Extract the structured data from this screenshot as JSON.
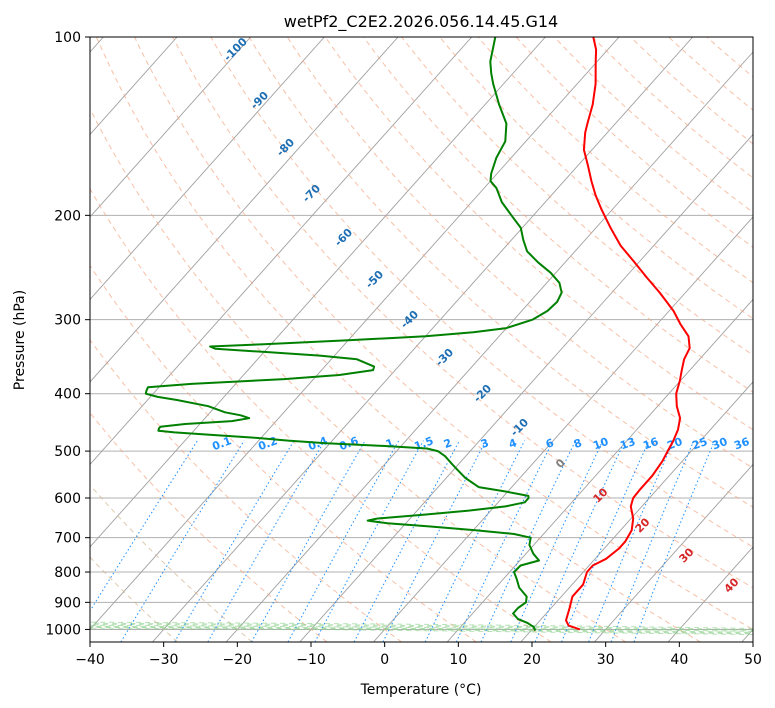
{
  "chart_data": {
    "type": "line",
    "title": "wetPf2_C2E2.2026.056.14.45.G14",
    "xlabel": "Temperature (°C)",
    "ylabel": "Pressure (hPa)",
    "xlim": [
      -40,
      50
    ],
    "ylim": [
      1050,
      100
    ],
    "y_scale": "log",
    "grid": true,
    "x_ticks": [
      -40,
      -30,
      -20,
      -10,
      0,
      10,
      20,
      30,
      40,
      50
    ],
    "y_ticks": [
      100,
      200,
      300,
      400,
      500,
      600,
      700,
      800,
      900,
      1000
    ],
    "skew_isotherms": [
      -140,
      -130,
      -120,
      -110,
      -100,
      -90,
      -80,
      -70,
      -60,
      -50,
      -40,
      -30,
      -20,
      -10,
      0,
      10,
      20,
      30,
      40,
      50
    ],
    "isotherm_labels": [
      -100,
      -90,
      -80,
      -70,
      -60,
      -50,
      -40,
      -30,
      -20,
      -10
    ],
    "freezing_label": "0",
    "dry_adiabat_temps": [
      -30,
      -20,
      -10,
      0,
      10,
      20,
      30,
      40,
      50,
      60,
      70,
      80,
      90,
      100,
      110,
      120,
      130,
      140,
      150,
      160,
      170,
      180,
      190,
      200
    ],
    "moist_adiabat_temps": [
      -10,
      0,
      10,
      20,
      30,
      40,
      50,
      60
    ],
    "moist_adiabat_labels": [
      "10",
      "20",
      "30",
      "40"
    ],
    "mixing_ratios": [
      0.1,
      0.2,
      0.4,
      0.6,
      1,
      1.5,
      2,
      3,
      4,
      6,
      8,
      10,
      13,
      16,
      20,
      25,
      30,
      36
    ],
    "mixing_ratio_labels": [
      "0.1",
      "0.2",
      "0.4",
      "0.6",
      "1",
      "1.5",
      "2",
      "3",
      "4",
      "6",
      "8",
      "10",
      "13",
      "16",
      "20",
      "25",
      "30",
      "36"
    ],
    "series": [
      {
        "color": "#ff0000",
        "points": [
          [
            1000,
            26.5
          ],
          [
            985,
            24.5
          ],
          [
            965,
            23.5
          ],
          [
            920,
            22.5
          ],
          [
            880,
            21.5
          ],
          [
            840,
            21.5
          ],
          [
            800,
            20.5
          ],
          [
            780,
            20.5
          ],
          [
            760,
            21.5
          ],
          [
            730,
            22.0
          ],
          [
            710,
            22.0
          ],
          [
            680,
            21.5
          ],
          [
            650,
            20.3
          ],
          [
            620,
            18.5
          ],
          [
            600,
            17.8
          ],
          [
            580,
            17.7
          ],
          [
            550,
            17.7
          ],
          [
            520,
            17.3
          ],
          [
            500,
            16.8
          ],
          [
            480,
            16.3
          ],
          [
            460,
            15.6
          ],
          [
            440,
            14.5
          ],
          [
            420,
            12.6
          ],
          [
            400,
            11.0
          ],
          [
            380,
            9.9
          ],
          [
            365,
            8.9
          ],
          [
            350,
            7.9
          ],
          [
            335,
            7.3
          ],
          [
            320,
            5.7
          ],
          [
            305,
            3.1
          ],
          [
            290,
            0.6
          ],
          [
            270,
            -3.5
          ],
          [
            255,
            -7.0
          ],
          [
            240,
            -10.6
          ],
          [
            225,
            -14.5
          ],
          [
            210,
            -18.0
          ],
          [
            195,
            -21.6
          ],
          [
            185,
            -24.0
          ],
          [
            175,
            -26.3
          ],
          [
            165,
            -28.6
          ],
          [
            155,
            -31.1
          ],
          [
            145,
            -33.0
          ],
          [
            140,
            -33.8
          ],
          [
            130,
            -35.4
          ],
          [
            120,
            -37.5
          ],
          [
            110,
            -40.2
          ],
          [
            105,
            -41.6
          ],
          [
            100,
            -43.5
          ]
        ]
      },
      {
        "color": "#008000",
        "points": [
          [
            1005,
            20.6
          ],
          [
            990,
            19.9
          ],
          [
            975,
            18.6
          ],
          [
            960,
            16.8
          ],
          [
            940,
            15.5
          ],
          [
            920,
            15.5
          ],
          [
            900,
            15.9
          ],
          [
            880,
            15.3
          ],
          [
            850,
            13.2
          ],
          [
            820,
            11.7
          ],
          [
            800,
            10.6
          ],
          [
            780,
            10.7
          ],
          [
            765,
            12.6
          ],
          [
            745,
            11.0
          ],
          [
            720,
            9.4
          ],
          [
            700,
            8.7
          ],
          [
            690,
            6.0
          ],
          [
            680,
            0.3
          ],
          [
            670,
            -6.5
          ],
          [
            662,
            -12.5
          ],
          [
            655,
            -15.5
          ],
          [
            650,
            -14.5
          ],
          [
            640,
            -8.5
          ],
          [
            630,
            -3.0
          ],
          [
            620,
            1.5
          ],
          [
            610,
            3.6
          ],
          [
            600,
            3.6
          ],
          [
            595,
            3.3
          ],
          [
            585,
            -0.3
          ],
          [
            575,
            -4.5
          ],
          [
            555,
            -7.4
          ],
          [
            540,
            -9.2
          ],
          [
            525,
            -11.0
          ],
          [
            510,
            -12.8
          ],
          [
            500,
            -14.4
          ],
          [
            495,
            -16.2
          ],
          [
            490,
            -22.5
          ],
          [
            485,
            -30.5
          ],
          [
            480,
            -36.0
          ],
          [
            475,
            -40.6
          ],
          [
            470,
            -46.3
          ],
          [
            465,
            -52.4
          ],
          [
            462,
            -54.8
          ],
          [
            458,
            -55.0
          ],
          [
            455,
            -55.0
          ],
          [
            450,
            -52.0
          ],
          [
            445,
            -46.0
          ],
          [
            440,
            -44.0
          ],
          [
            435,
            -45.5
          ],
          [
            430,
            -48.0
          ],
          [
            420,
            -51.0
          ],
          [
            410,
            -56.0
          ],
          [
            405,
            -59.0
          ],
          [
            400,
            -61.0
          ],
          [
            395,
            -61.3
          ],
          [
            390,
            -61.5
          ],
          [
            385,
            -56.0
          ],
          [
            378,
            -44.0
          ],
          [
            372,
            -37.0
          ],
          [
            365,
            -33.0
          ],
          [
            360,
            -33.3
          ],
          [
            350,
            -36.5
          ],
          [
            345,
            -42.0
          ],
          [
            340,
            -50.0
          ],
          [
            336,
            -57.0
          ],
          [
            333,
            -58.0
          ],
          [
            330,
            -51.0
          ],
          [
            325,
            -40.0
          ],
          [
            320,
            -30.0
          ],
          [
            315,
            -24.0
          ],
          [
            310,
            -20.0
          ],
          [
            300,
            -17.5
          ],
          [
            290,
            -16.5
          ],
          [
            280,
            -16.3
          ],
          [
            270,
            -16.8
          ],
          [
            260,
            -18.3
          ],
          [
            250,
            -20.7
          ],
          [
            240,
            -23.7
          ],
          [
            230,
            -26.5
          ],
          [
            220,
            -28.4
          ],
          [
            210,
            -30.2
          ],
          [
            200,
            -33.0
          ],
          [
            190,
            -35.9
          ],
          [
            180,
            -38.3
          ],
          [
            175,
            -40.0
          ],
          [
            170,
            -40.8
          ],
          [
            160,
            -42.0
          ],
          [
            150,
            -42.8
          ],
          [
            140,
            -44.8
          ],
          [
            130,
            -48.1
          ],
          [
            120,
            -51.4
          ],
          [
            115,
            -53.0
          ],
          [
            110,
            -54.5
          ],
          [
            100,
            -56.8
          ]
        ]
      }
    ]
  }
}
